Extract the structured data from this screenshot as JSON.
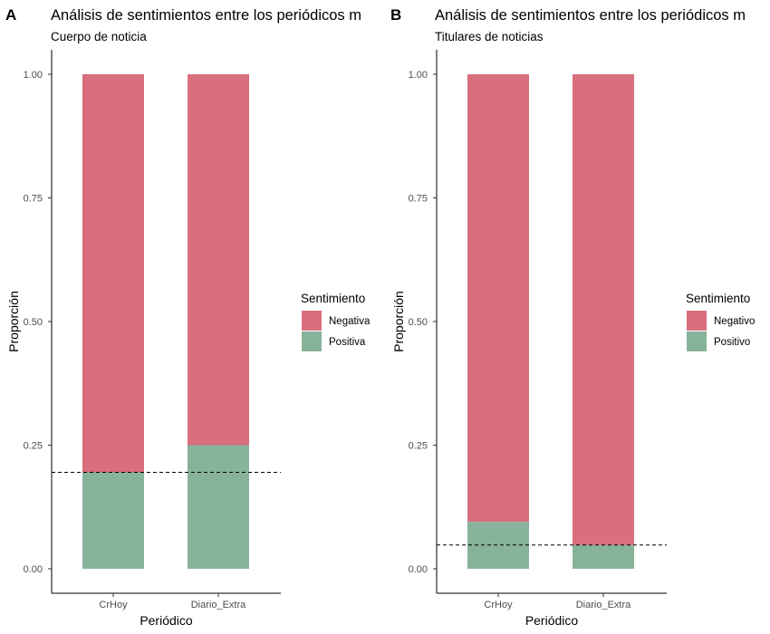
{
  "chart_data": [
    {
      "type": "bar",
      "stacked": true,
      "tag": "A",
      "title": "Análisis de sentimientos entre los periódicos m",
      "subtitle": "Cuerpo de noticia",
      "xlabel": "Periódico",
      "ylabel": "Proporción",
      "categories": [
        "CrHoy",
        "Diario_Extra"
      ],
      "series": [
        {
          "name": "Positiva",
          "values": [
            0.195,
            0.25
          ],
          "color": "#87b39b"
        },
        {
          "name": "Negativa",
          "values": [
            0.805,
            0.75
          ],
          "color": "#d96e7c"
        }
      ],
      "legend_order": [
        "Negativa",
        "Positiva"
      ],
      "legend_title": "Sentimiento",
      "legend_position": "right",
      "reference_line": 0.195,
      "ylim": [
        0,
        1
      ],
      "yticks": [
        0,
        0.25,
        0.5,
        0.75,
        1
      ],
      "ytick_labels": [
        "0.00",
        "0.25",
        "0.50",
        "0.75",
        "1.00"
      ],
      "grid": false
    },
    {
      "type": "bar",
      "stacked": true,
      "tag": "B",
      "title": "Análisis de sentimientos entre los periódicos m",
      "subtitle": "Titulares de noticias",
      "xlabel": "Periódico",
      "ylabel": "Proporción",
      "categories": [
        "CrHoy",
        "Diario_Extra"
      ],
      "series": [
        {
          "name": "Positivo",
          "values": [
            0.095,
            0.048
          ],
          "color": "#87b39b"
        },
        {
          "name": "Negativo",
          "values": [
            0.905,
            0.952
          ],
          "color": "#d96e7c"
        }
      ],
      "legend_order": [
        "Negativo",
        "Positivo"
      ],
      "legend_title": "Sentimiento",
      "legend_position": "right",
      "reference_line": 0.048,
      "ylim": [
        0,
        1
      ],
      "yticks": [
        0,
        0.25,
        0.5,
        0.75,
        1
      ],
      "ytick_labels": [
        "0.00",
        "0.25",
        "0.50",
        "0.75",
        "1.00"
      ],
      "grid": false
    }
  ]
}
